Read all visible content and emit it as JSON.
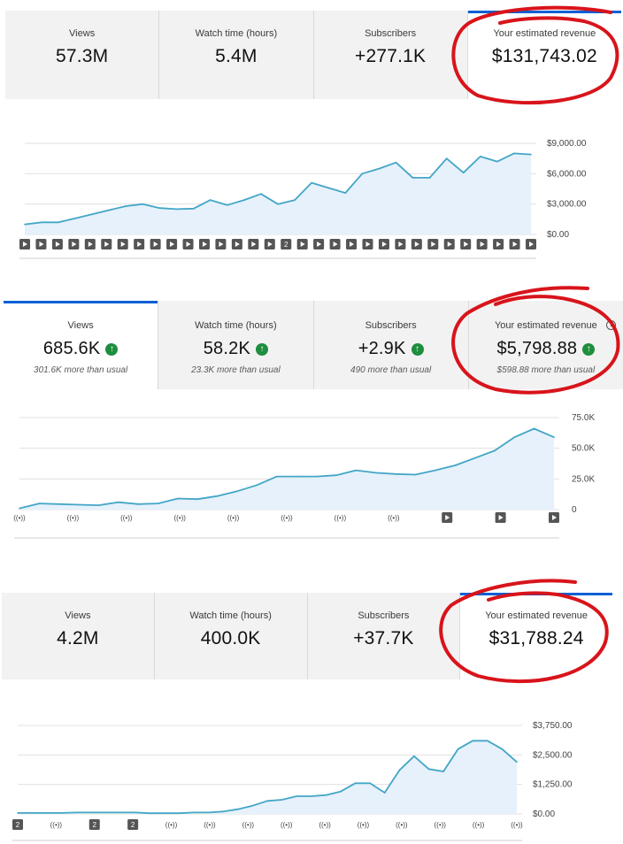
{
  "panels": [
    {
      "tiles": [
        {
          "label": "Views",
          "value": "57.3M"
        },
        {
          "label": "Watch time (hours)",
          "value": "5.4M"
        },
        {
          "label": "Subscribers",
          "value": "+277.1K"
        },
        {
          "label": "Your estimated revenue",
          "value": "$131,743.02"
        }
      ]
    },
    {
      "tiles": [
        {
          "label": "Views",
          "value": "685.6K",
          "sub": "301.6K more than usual"
        },
        {
          "label": "Watch time (hours)",
          "value": "58.2K",
          "sub": "23.3K more than usual"
        },
        {
          "label": "Subscribers",
          "value": "+2.9K",
          "sub": "490 more than usual"
        },
        {
          "label": "Your estimated revenue",
          "value": "$5,798.88",
          "sub": "$598.88 more than usual"
        }
      ]
    },
    {
      "tiles": [
        {
          "label": "Views",
          "value": "4.2M"
        },
        {
          "label": "Watch time (hours)",
          "value": "400.0K"
        },
        {
          "label": "Subscribers",
          "value": "+37.7K"
        },
        {
          "label": "Your estimated revenue",
          "value": "$31,788.24"
        }
      ]
    }
  ],
  "colors": {
    "line": "#43a6c6",
    "fill": "#e6f1fb",
    "grid": "#e0e0e0",
    "selected_bar": "#065fd4",
    "up_badge": "#1e8e3e",
    "annotation_circle": "#d8141b",
    "marker": "#555555"
  },
  "icons": [
    "up-arrow-icon",
    "clock-icon",
    "video-play-icon",
    "live-stream-icon"
  ],
  "chart_data": [
    {
      "type": "area",
      "yticks": [
        "$9,000.00",
        "$6,000.00",
        "$3,000.00",
        "$0.00"
      ],
      "ylim": [
        0,
        9000
      ],
      "values": [
        1000,
        1200,
        1200,
        1600,
        2000,
        2400,
        2800,
        3000,
        2600,
        2500,
        2550,
        3400,
        2900,
        3400,
        4000,
        3000,
        3400,
        5100,
        4600,
        4100,
        6000,
        6500,
        7100,
        5600,
        5600,
        7500,
        6100,
        7700,
        7200,
        8000,
        7900
      ],
      "markers": [
        "play",
        "play",
        "play",
        "play",
        "play",
        "play",
        "play",
        "play",
        "play",
        "play",
        "play",
        "play",
        "play",
        "play",
        "play",
        "play",
        "2",
        "play",
        "play",
        "play",
        "play",
        "play",
        "play",
        "play",
        "play",
        "play",
        "play",
        "play",
        "play",
        "play",
        "play",
        "play"
      ],
      "grid": true
    },
    {
      "type": "area",
      "yticks": [
        "75.0K",
        "50.0K",
        "25.0K",
        "0"
      ],
      "ylim": [
        0,
        75000
      ],
      "values": [
        1000,
        5000,
        4500,
        4000,
        3500,
        6000,
        4500,
        5000,
        9000,
        8500,
        11000,
        15000,
        20000,
        27000,
        27000,
        27000,
        28000,
        32000,
        30000,
        29000,
        28500,
        32000,
        36000,
        42000,
        48000,
        59000,
        66000,
        59000
      ],
      "markers": [
        "live",
        "live",
        "live",
        "live",
        "live",
        "live",
        "live",
        "live",
        "play",
        "play",
        "play"
      ],
      "grid": true
    },
    {
      "type": "area",
      "yticks": [
        "$3,750.00",
        "$2,500.00",
        "$1,250.00",
        "$0.00"
      ],
      "ylim": [
        0,
        3750
      ],
      "values": [
        40,
        40,
        40,
        40,
        60,
        60,
        60,
        60,
        60,
        30,
        30,
        30,
        60,
        60,
        100,
        200,
        350,
        550,
        600,
        750,
        750,
        800,
        950,
        1300,
        1300,
        900,
        1850,
        2450,
        1900,
        1800,
        2750,
        3100,
        3100,
        2750,
        2200
      ],
      "markers": [
        "2",
        "live",
        "2",
        "2",
        "live",
        "live",
        "live",
        "live",
        "live",
        "live",
        "live",
        "live",
        "live",
        "live"
      ],
      "grid": true
    }
  ]
}
